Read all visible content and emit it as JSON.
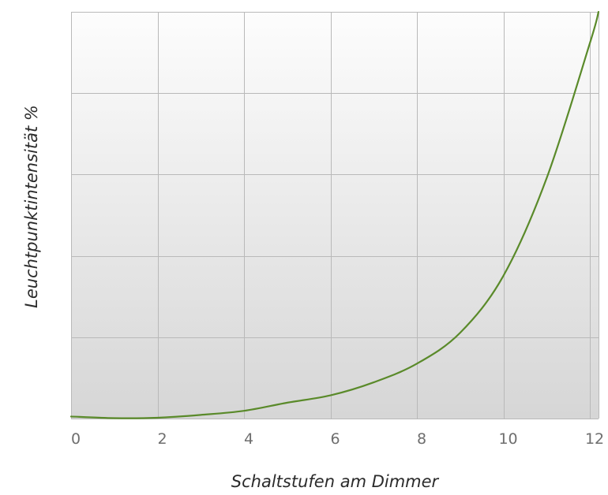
{
  "chart_data": {
    "type": "line",
    "title": "",
    "xlabel": "Schaltstufen am Dimmer",
    "ylabel": "Leuchtpunktintensität %",
    "xlim": [
      0,
      12.2
    ],
    "ylim": [
      0,
      100
    ],
    "x_ticks": [
      "0",
      "2",
      "4",
      "6",
      "8",
      "10",
      "12"
    ],
    "y_ticks_labeled": false,
    "grid": true,
    "legend": "none",
    "series": [
      {
        "color": "#5a8a2a",
        "x": [
          0,
          1,
          2,
          3,
          4,
          5,
          6,
          7,
          8,
          9,
          10,
          11,
          12,
          12.2
        ],
        "y": [
          0.5,
          0.1,
          0.2,
          0.9,
          1.9,
          3.9,
          5.7,
          8.9,
          13.5,
          21.1,
          35.1,
          59.1,
          92.3,
          100
        ]
      }
    ]
  },
  "colors": {
    "grid": "#b9b9b9",
    "background_top": "#fdfdfd",
    "background_bottom": "#d6d6d6"
  }
}
